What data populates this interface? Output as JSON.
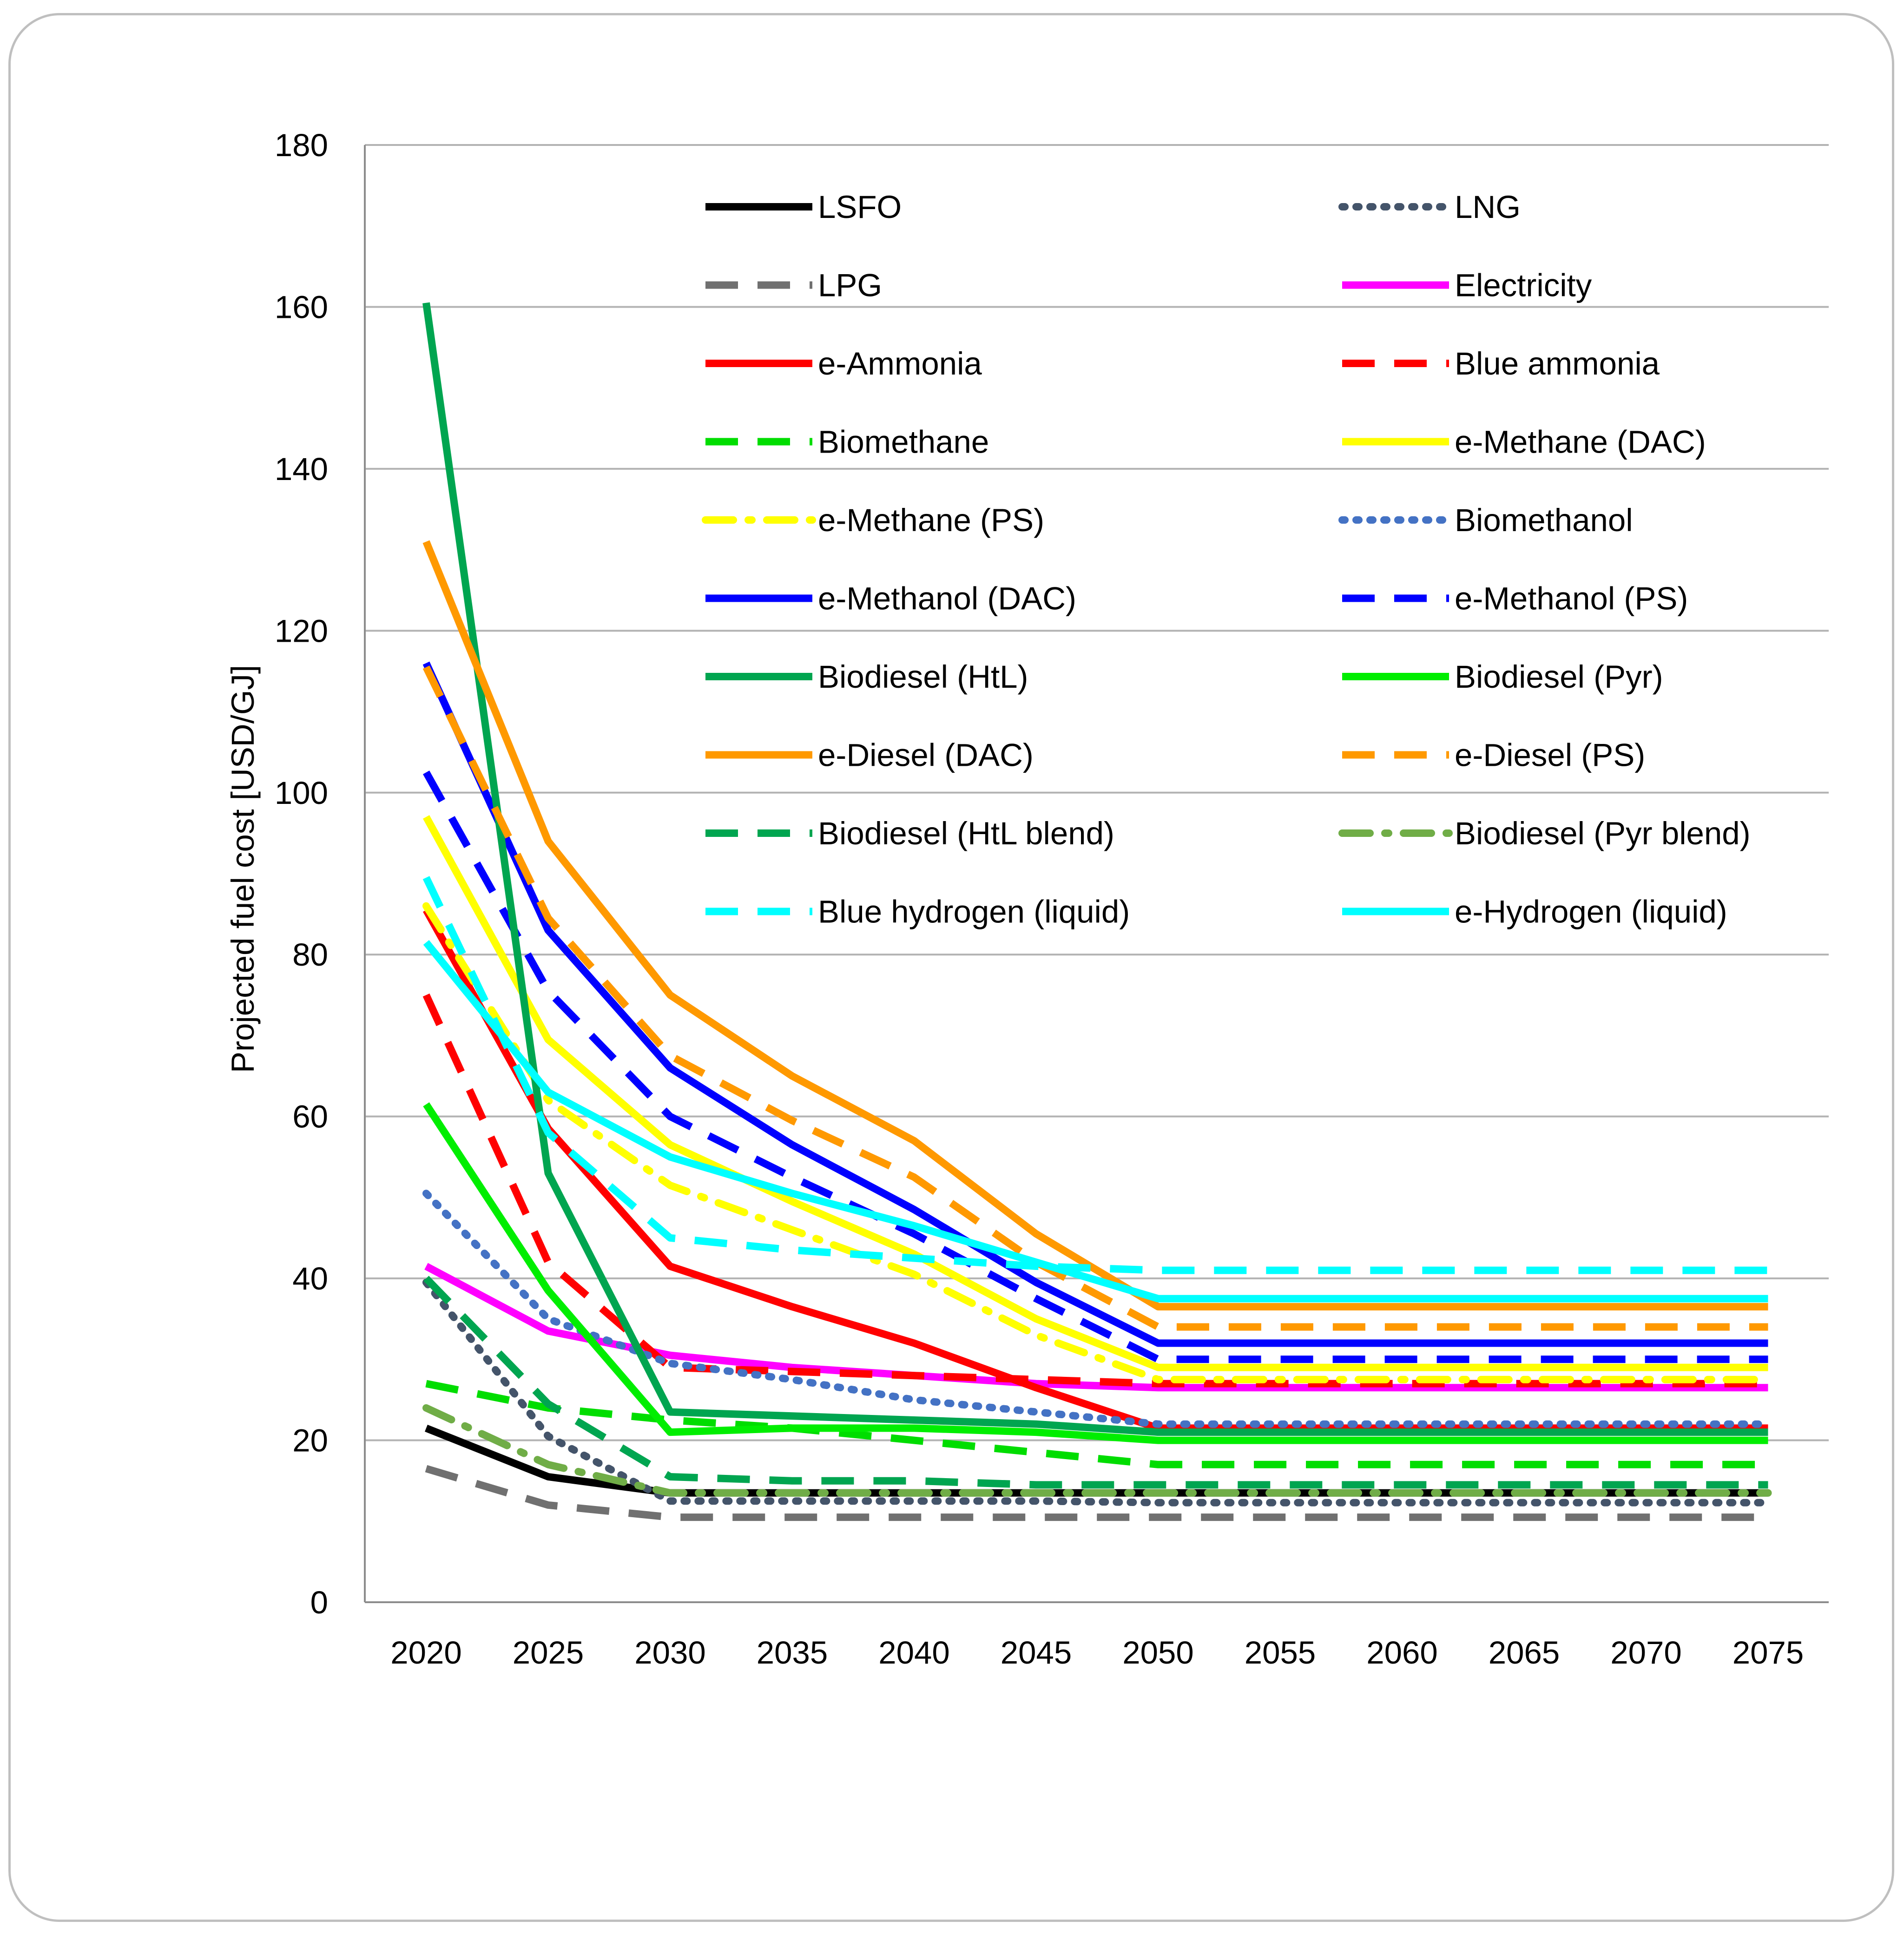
{
  "chart_data": {
    "type": "line",
    "title": "",
    "xlabel": "",
    "ylabel": "Projected fuel cost [USD/GJ]",
    "ylim": [
      0,
      180
    ],
    "yticks": [
      0,
      20,
      40,
      60,
      80,
      100,
      120,
      140,
      160,
      180
    ],
    "x": [
      "2020",
      "2025",
      "2030",
      "2035",
      "2040",
      "2045",
      "2050",
      "2055",
      "2060",
      "2065",
      "2070",
      "2075"
    ],
    "grid": "horizontal",
    "legend_position": "top (inside plot, two columns)",
    "series": [
      {
        "name": "LSFO",
        "color": "#000000",
        "style": "solid",
        "values": [
          21.5,
          15.5,
          13.5,
          13.5,
          13.5,
          13.5,
          13.5,
          13.5,
          13.5,
          13.5,
          13.5,
          13.5
        ]
      },
      {
        "name": "LNG",
        "color": "#44546a",
        "style": "dotted",
        "values": [
          39.5,
          20.5,
          12.5,
          12.5,
          12.5,
          12.5,
          12.3,
          12.3,
          12.3,
          12.3,
          12.3,
          12.3
        ]
      },
      {
        "name": "LPG",
        "color": "#707070",
        "style": "dashed",
        "values": [
          16.5,
          12.0,
          10.5,
          10.5,
          10.5,
          10.5,
          10.5,
          10.5,
          10.5,
          10.5,
          10.5,
          10.5
        ]
      },
      {
        "name": "Electricity",
        "color": "#ff00ff",
        "style": "solid",
        "values": [
          41.5,
          33.5,
          30.5,
          29.0,
          28.0,
          27.0,
          26.5,
          26.5,
          26.5,
          26.5,
          26.5,
          26.5
        ]
      },
      {
        "name": "e-Ammonia",
        "color": "#ff0000",
        "style": "solid",
        "values": [
          85.5,
          58.5,
          41.5,
          36.5,
          32.0,
          26.5,
          21.5,
          21.5,
          21.5,
          21.5,
          21.5,
          21.5
        ]
      },
      {
        "name": "Blue ammonia",
        "color": "#ff0000",
        "style": "dashed",
        "values": [
          75.0,
          42.0,
          29.0,
          28.5,
          28.0,
          27.5,
          27.0,
          27.0,
          27.0,
          27.0,
          27.0,
          27.0
        ]
      },
      {
        "name": "Biomethane",
        "color": "#00dd00",
        "style": "dashed",
        "values": [
          27.0,
          24.0,
          22.5,
          21.5,
          20.0,
          18.5,
          17.0,
          17.0,
          17.0,
          17.0,
          17.0,
          17.0
        ]
      },
      {
        "name": "e-Methane (DAC)",
        "color": "#ffff00",
        "style": "solid",
        "values": [
          97.0,
          69.5,
          56.5,
          49.5,
          43.0,
          35.0,
          29.0,
          29.0,
          29.0,
          29.0,
          29.0,
          29.0
        ]
      },
      {
        "name": "e-Methane (PS)",
        "color": "#ffff00",
        "style": "dashdot",
        "values": [
          86.0,
          62.0,
          51.5,
          46.0,
          40.5,
          33.0,
          27.5,
          27.5,
          27.5,
          27.5,
          27.5,
          27.5
        ]
      },
      {
        "name": "Biomethanol",
        "color": "#4472c4",
        "style": "dotted",
        "values": [
          50.5,
          35.0,
          29.5,
          27.5,
          25.0,
          23.5,
          22.0,
          22.0,
          22.0,
          22.0,
          22.0,
          22.0
        ]
      },
      {
        "name": "e-Methanol (DAC)",
        "color": "#0000ff",
        "style": "solid",
        "values": [
          116.0,
          83.0,
          66.0,
          56.5,
          48.5,
          39.5,
          32.0,
          32.0,
          32.0,
          32.0,
          32.0,
          32.0
        ]
      },
      {
        "name": "e-Methanol (PS)",
        "color": "#0000ff",
        "style": "dashed",
        "values": [
          102.5,
          75.5,
          60.0,
          52.5,
          45.5,
          37.5,
          30.0,
          30.0,
          30.0,
          30.0,
          30.0,
          30.0
        ]
      },
      {
        "name": "Biodiesel (HtL)",
        "color": "#00a550",
        "style": "solid",
        "values": [
          160.5,
          53.0,
          23.5,
          23.0,
          22.5,
          22.0,
          21.0,
          21.0,
          21.0,
          21.0,
          21.0,
          21.0
        ]
      },
      {
        "name": "Biodiesel (Pyr)",
        "color": "#00ee00",
        "style": "solid",
        "values": [
          61.5,
          38.5,
          21.0,
          21.5,
          21.5,
          21.0,
          20.0,
          20.0,
          20.0,
          20.0,
          20.0,
          20.0
        ]
      },
      {
        "name": "e-Diesel (DAC)",
        "color": "#ff9900",
        "style": "solid",
        "values": [
          131.0,
          94.0,
          75.0,
          65.0,
          57.0,
          45.5,
          36.5,
          36.5,
          36.5,
          36.5,
          36.5,
          36.5
        ]
      },
      {
        "name": "e-Diesel (PS)",
        "color": "#ff9900",
        "style": "dashed",
        "values": [
          115.5,
          84.5,
          67.5,
          59.5,
          52.5,
          42.0,
          34.0,
          34.0,
          34.0,
          34.0,
          34.0,
          34.0
        ]
      },
      {
        "name": "Biodiesel (HtL blend)",
        "color": "#00a550",
        "style": "dashed",
        "values": [
          40.0,
          24.5,
          15.5,
          15.0,
          15.0,
          14.5,
          14.5,
          14.5,
          14.5,
          14.5,
          14.5,
          14.5
        ]
      },
      {
        "name": "Biodiesel (Pyr blend)",
        "color": "#70ad47",
        "style": "dashdot",
        "values": [
          24.0,
          17.0,
          13.5,
          13.5,
          13.5,
          13.5,
          13.5,
          13.5,
          13.5,
          13.5,
          13.5,
          13.5
        ]
      },
      {
        "name": "Blue hydrogen (liquid)",
        "color": "#00ffff",
        "style": "dashed",
        "values": [
          89.5,
          58.0,
          45.0,
          43.5,
          42.5,
          41.5,
          41.0,
          41.0,
          41.0,
          41.0,
          41.0,
          41.0
        ]
      },
      {
        "name": "e-Hydrogen (liquid)",
        "color": "#00ffff",
        "style": "solid",
        "values": [
          81.5,
          63.0,
          55.0,
          50.5,
          46.5,
          42.0,
          37.5,
          37.5,
          37.5,
          37.5,
          37.5,
          37.5
        ]
      }
    ]
  }
}
